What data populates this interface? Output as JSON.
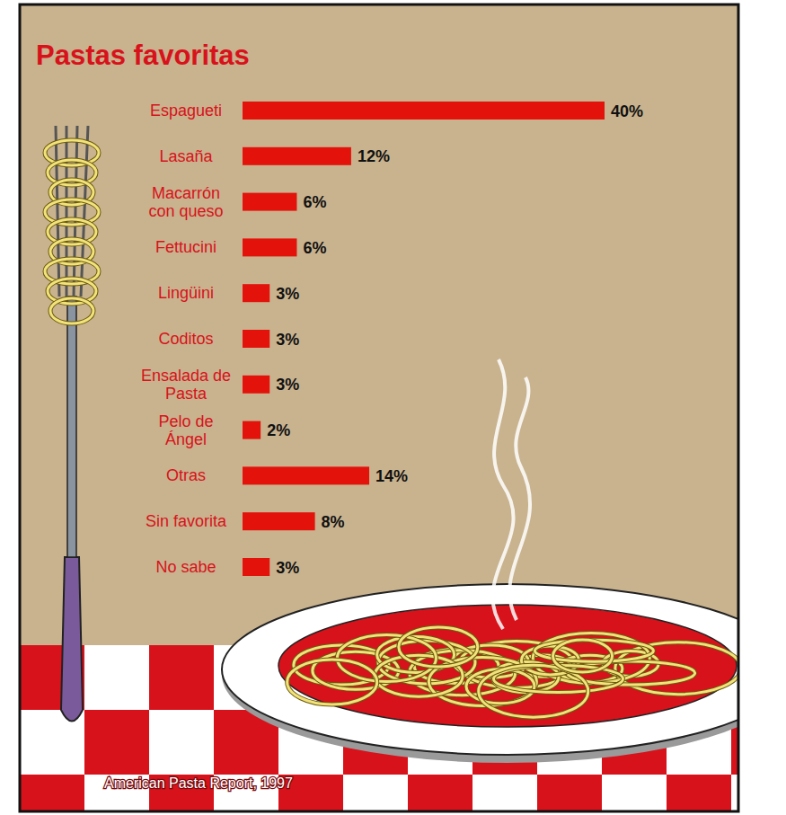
{
  "chart_data": {
    "type": "bar",
    "title": "Pastas favoritas",
    "orientation": "horizontal",
    "categories": [
      "Espagueti",
      "Lasaña",
      "Macarrón con queso",
      "Fettucini",
      "Lingüini",
      "Coditos",
      "Ensalada de Pasta",
      "Pelo de Ángel",
      "Otras",
      "Sin favorita",
      "No sabe"
    ],
    "values": [
      40,
      12,
      6,
      6,
      3,
      3,
      3,
      2,
      14,
      8,
      3
    ],
    "value_labels": [
      "40%",
      "12%",
      "6%",
      "6%",
      "3%",
      "3%",
      "3%",
      "2%",
      "14%",
      "8%",
      "3%"
    ],
    "data_labels": true,
    "color": "#e3120b",
    "xlim": [
      0,
      40
    ],
    "tick_labels": false,
    "source": "American Pasta Report, 1997"
  }
}
